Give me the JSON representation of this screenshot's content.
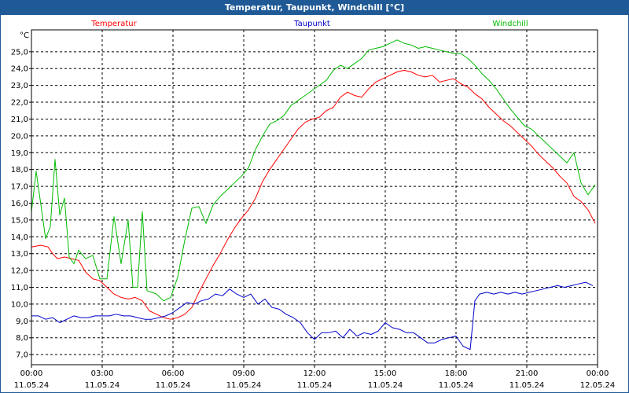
{
  "window": {
    "title": "Temperatur, Taupunkt, Windchill [°C]"
  },
  "chart_data": {
    "type": "line",
    "title": "Temperatur, Taupunkt, Windchill [°C]",
    "ylabel": "°C",
    "ylim": [
      6.4,
      26.3
    ],
    "xlim": [
      0,
      24
    ],
    "y_ticks": [
      7.0,
      8.0,
      9.0,
      10.0,
      11.0,
      12.0,
      13.0,
      14.0,
      15.0,
      16.0,
      17.0,
      18.0,
      19.0,
      20.0,
      21.0,
      22.0,
      23.0,
      24.0,
      25.0
    ],
    "y_tick_labels": [
      "7,0",
      "8,0",
      "9,0",
      "10,0",
      "11,0",
      "12,0",
      "13,0",
      "14,0",
      "15,0",
      "16,0",
      "17,0",
      "18,0",
      "19,0",
      "20,0",
      "21,0",
      "22,0",
      "23,0",
      "24,0",
      "25,0"
    ],
    "x_ticks": [
      {
        "x": 0,
        "time": "00:00",
        "date": "11.05.24"
      },
      {
        "x": 3,
        "time": "03:00",
        "date": "11.05.24"
      },
      {
        "x": 6,
        "time": "06:00",
        "date": "11.05.24"
      },
      {
        "x": 9,
        "time": "09:00",
        "date": "11.05.24"
      },
      {
        "x": 12,
        "time": "12:00",
        "date": "11.05.24"
      },
      {
        "x": 15,
        "time": "15:00",
        "date": "11.05.24"
      },
      {
        "x": 18,
        "time": "18:00",
        "date": "11.05.24"
      },
      {
        "x": 21,
        "time": "21:00",
        "date": "11.05.24"
      },
      {
        "x": 24,
        "time": "00:00",
        "date": "12.05.24"
      }
    ],
    "grid": true,
    "series": [
      {
        "name": "Temperatur",
        "color": "#ff0000",
        "x": [
          0,
          0.4,
          0.7,
          0.9,
          1.1,
          1.4,
          1.7,
          2.0,
          2.3,
          2.6,
          2.9,
          3.2,
          3.5,
          3.8,
          4.1,
          4.4,
          4.7,
          5.0,
          5.3,
          5.6,
          5.9,
          6.2,
          6.5,
          6.8,
          7.1,
          7.4,
          7.7,
          8.0,
          8.3,
          8.6,
          8.9,
          9.2,
          9.5,
          9.8,
          10.1,
          10.4,
          10.7,
          11.0,
          11.3,
          11.6,
          11.9,
          12.2,
          12.5,
          12.8,
          13.1,
          13.4,
          13.7,
          14.0,
          14.3,
          14.6,
          14.9,
          15.2,
          15.5,
          15.8,
          16.1,
          16.4,
          16.7,
          17.0,
          17.3,
          17.6,
          17.9,
          18.2,
          18.5,
          18.8,
          19.1,
          19.4,
          19.7,
          20.0,
          20.3,
          20.6,
          20.9,
          21.2,
          21.5,
          21.8,
          22.1,
          22.4,
          22.7,
          23.0,
          23.3,
          23.6,
          23.9
        ],
        "values": [
          13.4,
          13.5,
          13.4,
          13.0,
          12.7,
          12.8,
          12.7,
          12.6,
          11.9,
          11.5,
          11.4,
          11.0,
          10.6,
          10.4,
          10.3,
          10.4,
          10.2,
          9.6,
          9.4,
          9.2,
          9.1,
          9.2,
          9.4,
          9.8,
          10.7,
          11.5,
          12.3,
          13.0,
          13.8,
          14.5,
          15.1,
          15.6,
          16.3,
          17.3,
          18.0,
          18.6,
          19.2,
          19.8,
          20.4,
          20.8,
          21.0,
          21.1,
          21.5,
          21.7,
          22.3,
          22.6,
          22.4,
          22.3,
          22.8,
          23.2,
          23.4,
          23.6,
          23.8,
          23.9,
          23.8,
          23.6,
          23.5,
          23.6,
          23.2,
          23.3,
          23.4,
          23.1,
          22.9,
          22.5,
          22.2,
          21.7,
          21.3,
          20.9,
          20.6,
          20.2,
          19.8,
          19.4,
          18.9,
          18.5,
          18.1,
          17.6,
          17.2,
          16.4,
          16.1,
          15.6,
          14.8
        ]
      },
      {
        "name": "Taupunkt",
        "color": "#0000cc",
        "x": [
          0,
          0.3,
          0.6,
          0.9,
          1.2,
          1.5,
          1.8,
          2.1,
          2.4,
          2.7,
          3.0,
          3.3,
          3.6,
          3.9,
          4.2,
          4.5,
          4.8,
          5.1,
          5.4,
          5.7,
          6.0,
          6.3,
          6.6,
          6.9,
          7.2,
          7.5,
          7.8,
          8.1,
          8.4,
          8.7,
          9.0,
          9.3,
          9.6,
          9.9,
          10.2,
          10.5,
          10.8,
          11.1,
          11.4,
          11.7,
          12.0,
          12.3,
          12.6,
          12.9,
          13.2,
          13.5,
          13.8,
          14.1,
          14.4,
          14.7,
          15.0,
          15.3,
          15.6,
          15.9,
          16.2,
          16.5,
          16.8,
          17.1,
          17.4,
          17.7,
          18.0,
          18.3,
          18.6,
          18.8,
          19.0,
          19.3,
          19.6,
          19.9,
          20.2,
          20.5,
          20.8,
          21.1,
          21.4,
          21.7,
          22.0,
          22.3,
          22.6,
          22.9,
          23.2,
          23.5,
          23.8
        ],
        "values": [
          9.3,
          9.3,
          9.1,
          9.2,
          8.9,
          9.1,
          9.3,
          9.2,
          9.2,
          9.3,
          9.3,
          9.3,
          9.4,
          9.3,
          9.3,
          9.2,
          9.1,
          9.1,
          9.2,
          9.3,
          9.5,
          9.8,
          10.1,
          10.0,
          10.2,
          10.3,
          10.6,
          10.5,
          10.9,
          10.6,
          10.4,
          10.6,
          10.0,
          10.3,
          9.8,
          9.7,
          9.4,
          9.2,
          8.9,
          8.3,
          7.9,
          8.3,
          8.3,
          8.4,
          8.0,
          8.5,
          8.1,
          8.3,
          8.2,
          8.4,
          8.9,
          8.6,
          8.5,
          8.3,
          8.3,
          8.0,
          7.7,
          7.7,
          7.9,
          8.0,
          8.1,
          7.5,
          7.3,
          10.2,
          10.6,
          10.7,
          10.6,
          10.7,
          10.6,
          10.7,
          10.6,
          10.7,
          10.8,
          10.9,
          11.0,
          11.1,
          11.0,
          11.1,
          11.2,
          11.3,
          11.1
        ]
      },
      {
        "name": "Windchill",
        "color": "#00bb00",
        "x": [
          0,
          0.2,
          0.4,
          0.6,
          0.8,
          1.0,
          1.2,
          1.4,
          1.6,
          1.8,
          2.0,
          2.3,
          2.6,
          2.9,
          3.2,
          3.5,
          3.8,
          4.1,
          4.3,
          4.5,
          4.7,
          4.9,
          5.1,
          5.3,
          5.6,
          5.9,
          6.2,
          6.5,
          6.8,
          7.1,
          7.4,
          7.7,
          8.0,
          8.3,
          8.6,
          8.9,
          9.2,
          9.5,
          9.8,
          10.1,
          10.4,
          10.7,
          11.0,
          11.3,
          11.6,
          11.9,
          12.2,
          12.5,
          12.8,
          13.1,
          13.4,
          13.7,
          14.0,
          14.3,
          14.6,
          14.9,
          15.2,
          15.5,
          15.8,
          16.1,
          16.4,
          16.7,
          17.0,
          17.3,
          17.6,
          17.9,
          18.2,
          18.5,
          18.8,
          19.1,
          19.4,
          19.7,
          20.0,
          20.3,
          20.6,
          20.9,
          21.2,
          21.5,
          21.8,
          22.1,
          22.4,
          22.7,
          23.0,
          23.3,
          23.6,
          23.9
        ],
        "values": [
          15.5,
          17.9,
          15.9,
          13.9,
          14.6,
          18.6,
          15.3,
          16.3,
          12.8,
          12.4,
          13.2,
          12.7,
          12.9,
          11.5,
          11.5,
          15.2,
          12.4,
          15.0,
          11.0,
          11.0,
          15.5,
          10.8,
          10.7,
          10.6,
          10.2,
          10.4,
          11.6,
          13.8,
          15.7,
          15.8,
          14.8,
          15.9,
          16.4,
          16.8,
          17.2,
          17.6,
          18.1,
          19.2,
          20.0,
          20.7,
          20.9,
          21.2,
          21.8,
          22.1,
          22.4,
          22.7,
          23.0,
          23.3,
          23.9,
          24.2,
          24.0,
          24.3,
          24.6,
          25.1,
          25.2,
          25.3,
          25.5,
          25.7,
          25.5,
          25.4,
          25.2,
          25.3,
          25.2,
          25.1,
          25.0,
          24.9,
          24.9,
          24.6,
          24.2,
          23.7,
          23.3,
          22.8,
          22.2,
          21.6,
          21.1,
          20.6,
          20.4,
          20.0,
          19.6,
          19.2,
          18.8,
          18.4,
          19.0,
          17.2,
          16.5,
          17.1
        ]
      }
    ]
  }
}
